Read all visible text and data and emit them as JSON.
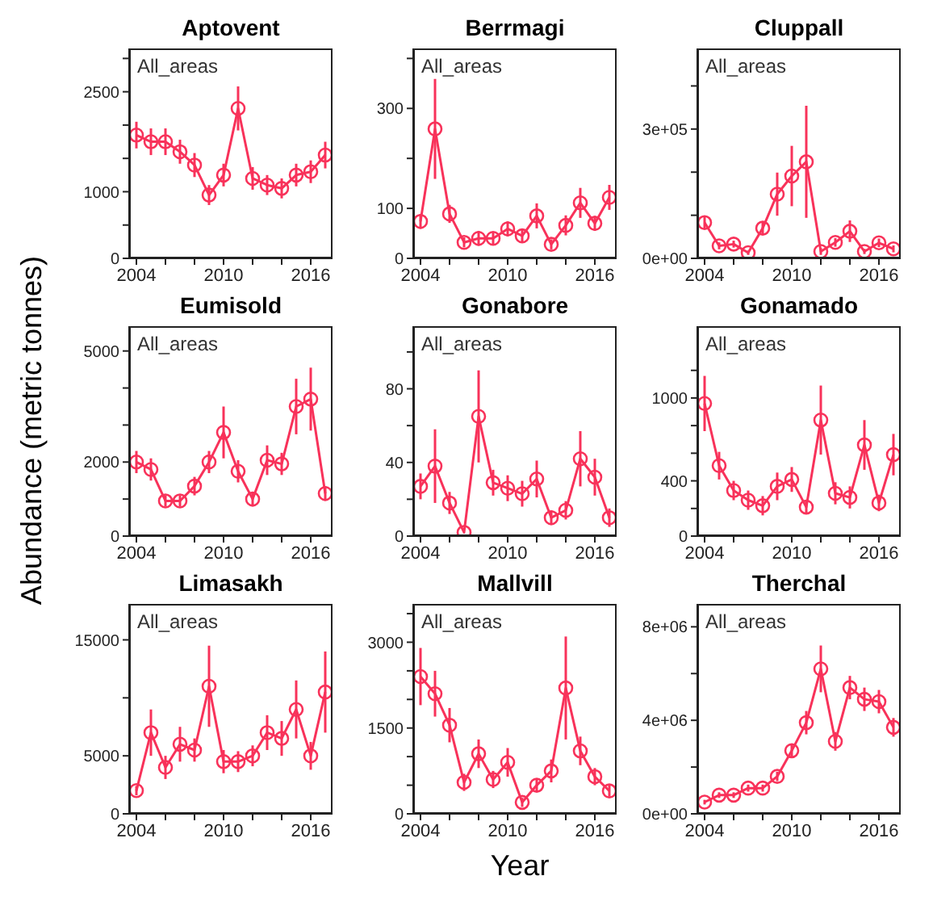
{
  "chart_data": [
    {
      "type": "line",
      "title": "Aptovent",
      "annotations": [
        "All_areas"
      ],
      "x": [
        2004,
        2005,
        2006,
        2007,
        2008,
        2009,
        2010,
        2011,
        2012,
        2013,
        2014,
        2015,
        2016,
        2017
      ],
      "values": [
        1850,
        1750,
        1750,
        1600,
        1400,
        950,
        1250,
        2250,
        1200,
        1100,
        1050,
        1250,
        1300,
        1550
      ],
      "errors": [
        200,
        200,
        200,
        180,
        180,
        150,
        170,
        330,
        170,
        150,
        150,
        170,
        170,
        200
      ],
      "color": "#f8325a",
      "marker": "circle",
      "xlim": [
        2003.5,
        2017.5
      ],
      "xticks": [
        2004,
        {
          "value": 2006,
          "label": null
        },
        {
          "value": 2008,
          "label": null
        },
        2010,
        {
          "value": 2012,
          "label": null
        },
        {
          "value": 2014,
          "label": null
        },
        2016
      ],
      "ylim": [
        0,
        3150
      ],
      "yticks": [
        0,
        {
          "value": 500,
          "label": null
        },
        1000,
        {
          "value": 1500,
          "label": null
        },
        {
          "value": 2000,
          "label": null
        },
        2500,
        {
          "value": 3000,
          "label": null
        }
      ]
    },
    {
      "type": "line",
      "title": "Berrmagi",
      "annotations": [
        "All_areas"
      ],
      "x": [
        2004,
        2005,
        2006,
        2007,
        2008,
        2009,
        2010,
        2011,
        2012,
        2013,
        2014,
        2015,
        2016,
        2017
      ],
      "values": [
        74,
        259,
        89,
        32,
        40,
        40,
        59,
        45,
        85,
        28,
        66,
        111,
        70,
        122
      ],
      "errors": [
        15,
        100,
        18,
        10,
        15,
        12,
        15,
        12,
        25,
        10,
        20,
        30,
        15,
        25
      ],
      "color": "#f8325a",
      "marker": "circle",
      "xlim": [
        2003.5,
        2017.5
      ],
      "xticks": [
        2004,
        {
          "value": 2006,
          "label": null
        },
        {
          "value": 2008,
          "label": null
        },
        2010,
        {
          "value": 2012,
          "label": null
        },
        {
          "value": 2014,
          "label": null
        },
        2016
      ],
      "ylim": [
        0,
        420
      ],
      "yticks": [
        0,
        100,
        {
          "value": 200,
          "label": null
        },
        300,
        {
          "value": 400,
          "label": null
        }
      ]
    },
    {
      "type": "line",
      "title": "Cluppall",
      "annotations": [
        "All_areas"
      ],
      "x": [
        2004,
        2005,
        2006,
        2007,
        2008,
        2009,
        2010,
        2011,
        2012,
        2013,
        2014,
        2015,
        2016,
        2017
      ],
      "values": [
        83000,
        29000,
        33000,
        13000,
        70000,
        149000,
        191000,
        224000,
        16000,
        37000,
        63000,
        16000,
        36000,
        22000
      ],
      "errors": [
        15000,
        8000,
        8000,
        5000,
        15000,
        50000,
        70000,
        130000,
        8000,
        10000,
        25000,
        6000,
        10000,
        8000
      ],
      "color": "#f8325a",
      "marker": "circle",
      "xlim": [
        2003.5,
        2017.5
      ],
      "xticks": [
        2004,
        {
          "value": 2006,
          "label": null
        },
        {
          "value": 2008,
          "label": null
        },
        2010,
        {
          "value": 2012,
          "label": null
        },
        {
          "value": 2014,
          "label": null
        },
        2016
      ],
      "ylim": [
        0,
        487000
      ],
      "yticks": [
        {
          "value": 0,
          "label": "0e+00"
        },
        {
          "value": 100000,
          "label": null
        },
        {
          "value": 200000,
          "label": null
        },
        {
          "value": 300000,
          "label": "3e+05"
        },
        {
          "value": 400000,
          "label": null
        }
      ]
    },
    {
      "type": "line",
      "title": "Eumisold",
      "ylabel": "Abundance (metric tonnes)",
      "annotations": [
        "All_areas"
      ],
      "x": [
        2004,
        2005,
        2006,
        2007,
        2008,
        2009,
        2010,
        2011,
        2012,
        2013,
        2014,
        2015,
        2016,
        2017
      ],
      "values": [
        2000,
        1800,
        950,
        950,
        1350,
        2000,
        2800,
        1750,
        1000,
        2050,
        1950,
        3500,
        3700,
        1150
      ],
      "errors": [
        300,
        300,
        150,
        150,
        250,
        300,
        700,
        300,
        200,
        400,
        300,
        750,
        850,
        200
      ],
      "color": "#f8325a",
      "marker": "circle",
      "xlim": [
        2003.5,
        2017.5
      ],
      "xticks": [
        2004,
        {
          "value": 2006,
          "label": null
        },
        {
          "value": 2008,
          "label": null
        },
        2010,
        {
          "value": 2012,
          "label": null
        },
        {
          "value": 2014,
          "label": null
        },
        2016
      ],
      "ylim": [
        0,
        5670
      ],
      "yticks": [
        0,
        {
          "value": 1000,
          "label": null
        },
        2000,
        {
          "value": 3000,
          "label": null
        },
        {
          "value": 4000,
          "label": null
        },
        5000
      ]
    },
    {
      "type": "line",
      "title": "Gonabore",
      "annotations": [
        "All_areas"
      ],
      "x": [
        2004,
        2005,
        2006,
        2007,
        2008,
        2009,
        2010,
        2011,
        2012,
        2013,
        2014,
        2015,
        2016,
        2017
      ],
      "values": [
        27,
        38,
        18,
        2,
        65,
        29,
        26,
        23,
        31,
        10,
        14,
        42,
        32,
        10
      ],
      "errors": [
        7,
        20,
        6,
        null,
        25,
        7,
        7,
        7,
        10,
        4,
        5,
        15,
        10,
        5
      ],
      "color": "#f8325a",
      "marker": "circle",
      "xlim": [
        2003.5,
        2017.5
      ],
      "xticks": [
        2004,
        {
          "value": 2006,
          "label": null
        },
        {
          "value": 2008,
          "label": null
        },
        2010,
        {
          "value": 2012,
          "label": null
        },
        {
          "value": 2014,
          "label": null
        },
        2016
      ],
      "ylim": [
        0,
        114
      ],
      "yticks": [
        0,
        {
          "value": 20,
          "label": null
        },
        40,
        {
          "value": 60,
          "label": null
        },
        80,
        {
          "value": 100,
          "label": null
        }
      ]
    },
    {
      "type": "line",
      "title": "Gonamado",
      "annotations": [
        "All_areas"
      ],
      "x": [
        2004,
        2005,
        2006,
        2007,
        2008,
        2009,
        2010,
        2011,
        2012,
        2013,
        2014,
        2015,
        2016,
        2017
      ],
      "values": [
        960,
        510,
        330,
        260,
        220,
        360,
        410,
        210,
        840,
        310,
        280,
        660,
        240,
        590
      ],
      "errors": [
        200,
        100,
        70,
        70,
        70,
        100,
        90,
        50,
        250,
        80,
        80,
        180,
        60,
        150
      ],
      "color": "#f8325a",
      "marker": "circle",
      "xlim": [
        2003.5,
        2017.5
      ],
      "xticks": [
        2004,
        {
          "value": 2006,
          "label": null
        },
        {
          "value": 2008,
          "label": null
        },
        2010,
        {
          "value": 2012,
          "label": null
        },
        {
          "value": 2014,
          "label": null
        },
        2016
      ],
      "ylim": [
        0,
        1520
      ],
      "yticks": [
        0,
        {
          "value": 200,
          "label": null
        },
        400,
        {
          "value": 600,
          "label": null
        },
        {
          "value": 800,
          "label": null
        },
        1000,
        {
          "value": 1200,
          "label": null
        }
      ]
    },
    {
      "type": "line",
      "title": "Limasakh",
      "annotations": [
        "All_areas"
      ],
      "x": [
        2004,
        2005,
        2006,
        2007,
        2008,
        2009,
        2010,
        2011,
        2012,
        2013,
        2014,
        2015,
        2016,
        2017
      ],
      "values": [
        2000,
        7000,
        4000,
        6000,
        5500,
        11000,
        4500,
        4500,
        5000,
        7000,
        6500,
        9000,
        5000,
        10500
      ],
      "errors": [
        400,
        2000,
        1000,
        1500,
        1000,
        3500,
        1000,
        900,
        900,
        1500,
        1500,
        2500,
        1200,
        3500
      ],
      "color": "#f8325a",
      "marker": "circle",
      "xlim": [
        2003.5,
        2017.5
      ],
      "xticks": [
        2004,
        {
          "value": 2006,
          "label": null
        },
        {
          "value": 2008,
          "label": null
        },
        2010,
        {
          "value": 2012,
          "label": null
        },
        {
          "value": 2014,
          "label": null
        },
        2016
      ],
      "ylim": [
        0,
        18100
      ],
      "yticks": [
        0,
        5000,
        {
          "value": 10000,
          "label": null
        },
        15000
      ]
    },
    {
      "type": "line",
      "title": "Mallvill",
      "xlabel": "Year",
      "annotations": [
        "All_areas"
      ],
      "x": [
        2004,
        2005,
        2006,
        2007,
        2008,
        2009,
        2010,
        2011,
        2012,
        2013,
        2014,
        2015,
        2016,
        2017
      ],
      "values": [
        2400,
        2100,
        1550,
        550,
        1050,
        600,
        900,
        200,
        500,
        750,
        2200,
        1100,
        650,
        400
      ],
      "errors": [
        500,
        400,
        300,
        150,
        250,
        150,
        250,
        80,
        120,
        200,
        900,
        250,
        150,
        100
      ],
      "color": "#f8325a",
      "marker": "circle",
      "xlim": [
        2003.5,
        2017.5
      ],
      "xticks": [
        2004,
        {
          "value": 2006,
          "label": null
        },
        {
          "value": 2008,
          "label": null
        },
        2010,
        {
          "value": 2012,
          "label": null
        },
        {
          "value": 2014,
          "label": null
        },
        2016
      ],
      "ylim": [
        0,
        3670
      ],
      "yticks": [
        0,
        {
          "value": 500,
          "label": null
        },
        {
          "value": 1000,
          "label": null
        },
        1500,
        {
          "value": 2000,
          "label": null
        },
        {
          "value": 2500,
          "label": null
        },
        3000,
        {
          "value": 3500,
          "label": null
        }
      ]
    },
    {
      "type": "line",
      "title": "Therchal",
      "annotations": [
        "All_areas"
      ],
      "x": [
        2004,
        2005,
        2006,
        2007,
        2008,
        2009,
        2010,
        2011,
        2012,
        2013,
        2014,
        2015,
        2016,
        2017
      ],
      "values": [
        500000,
        800000,
        800000,
        1100000,
        1100000,
        1600000,
        2700000,
        3900000,
        6200000,
        3100000,
        5400000,
        4900000,
        4800000,
        3700000
      ],
      "errors": [
        100000,
        120000,
        120000,
        150000,
        150000,
        200000,
        300000,
        500000,
        1000000,
        400000,
        500000,
        500000,
        500000,
        400000
      ],
      "color": "#f8325a",
      "marker": "circle",
      "xlim": [
        2003.5,
        2017.5
      ],
      "xticks": [
        2004,
        {
          "value": 2006,
          "label": null
        },
        {
          "value": 2008,
          "label": null
        },
        2010,
        {
          "value": 2012,
          "label": null
        },
        {
          "value": 2014,
          "label": null
        },
        2016
      ],
      "ylim": [
        0,
        8980000
      ],
      "yticks": [
        {
          "value": 0,
          "label": "0e+00"
        },
        {
          "value": 2000000,
          "label": null
        },
        {
          "value": 4000000,
          "label": "4e+06"
        },
        {
          "value": 6000000,
          "label": null
        },
        {
          "value": 8000000,
          "label": "8e+06"
        }
      ]
    }
  ]
}
